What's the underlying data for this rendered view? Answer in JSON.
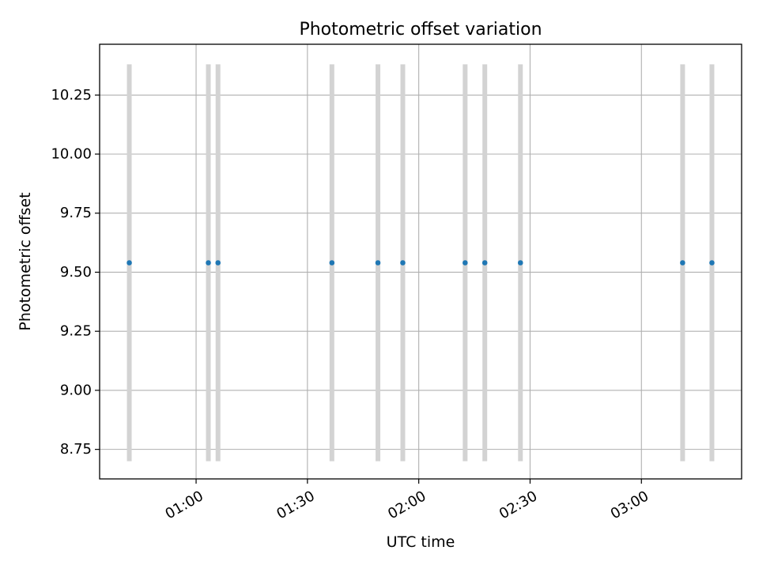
{
  "chart_data": {
    "type": "scatter",
    "title": "Photometric offset variation",
    "xlabel": "UTC time",
    "ylabel": "Photometric offset",
    "xlim_minutes": [
      34,
      207
    ],
    "ylim": [
      8.625,
      10.465
    ],
    "grid": true,
    "x_ticks": [
      {
        "value": 60,
        "label": "01:00"
      },
      {
        "value": 90,
        "label": "01:30"
      },
      {
        "value": 120,
        "label": "02:00"
      },
      {
        "value": 150,
        "label": "02:30"
      },
      {
        "value": 180,
        "label": "03:00"
      }
    ],
    "y_ticks": [
      {
        "value": 8.75,
        "label": "8.75"
      },
      {
        "value": 9.0,
        "label": "9.00"
      },
      {
        "value": 9.25,
        "label": "9.25"
      },
      {
        "value": 9.5,
        "label": "9.50"
      },
      {
        "value": 9.75,
        "label": "9.75"
      },
      {
        "value": 10.0,
        "label": "10.00"
      },
      {
        "value": 10.25,
        "label": "10.25"
      }
    ],
    "series": [
      {
        "name": "offset",
        "x_minutes": [
          42,
          63.3,
          65.9,
          96.6,
          109,
          115.7,
          132.5,
          137.8,
          147.4,
          191.1,
          199
        ],
        "x_labels": [
          "00:42",
          "01:03",
          "01:06",
          "01:37",
          "01:49",
          "01:56",
          "02:12",
          "02:18",
          "02:27",
          "03:11",
          "03:19"
        ],
        "y": [
          9.54,
          9.54,
          9.54,
          9.54,
          9.54,
          9.54,
          9.54,
          9.54,
          9.54,
          9.54,
          9.54
        ],
        "err_low": [
          8.7,
          8.7,
          8.7,
          8.7,
          8.7,
          8.7,
          8.7,
          8.7,
          8.7,
          8.7,
          8.7
        ],
        "err_high": [
          10.38,
          10.38,
          10.38,
          10.38,
          10.38,
          10.38,
          10.38,
          10.38,
          10.38,
          10.38,
          10.38
        ]
      }
    ],
    "colors": {
      "point": "#1f77b4",
      "errorbar": "#d3d3d3",
      "grid": "#b0b0b0",
      "axis": "#000000"
    }
  }
}
